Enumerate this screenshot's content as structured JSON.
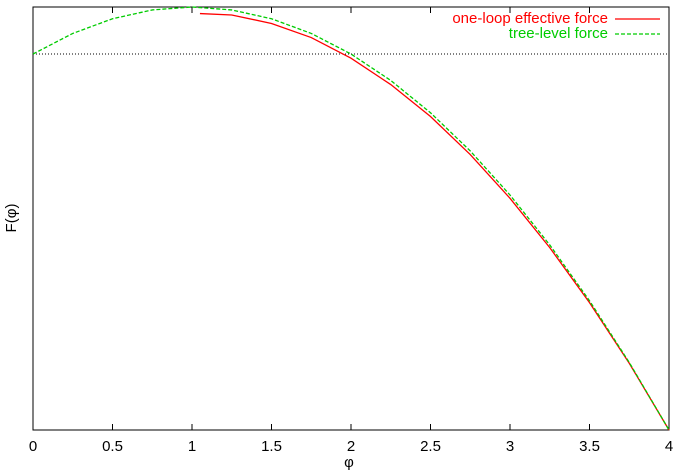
{
  "chart_data": {
    "type": "line",
    "xlabel": "φ",
    "ylabel": "F(φ)",
    "xlim": [
      0,
      4
    ],
    "ylim": [
      -8,
      1
    ],
    "xticks": [
      0,
      0.5,
      1,
      1.5,
      2,
      2.5,
      3,
      3.5,
      4
    ],
    "zeroaxis": true,
    "legend": "top-right",
    "series": [
      {
        "name": "one-loop effective force",
        "color": "#ff0000",
        "dash": false,
        "x": [
          1.05,
          1.25,
          1.5,
          1.75,
          2,
          2.25,
          2.5,
          2.75,
          3,
          3.25,
          3.5,
          3.75,
          4
        ],
        "values": [
          0.86,
          0.83,
          0.65,
          0.35,
          -0.09,
          -0.65,
          -1.33,
          -2.14,
          -3.07,
          -4.12,
          -5.29,
          -6.58,
          -8
        ]
      },
      {
        "name": "tree-level force",
        "color": "#00cc00",
        "dash": true,
        "x": [
          0,
          0.25,
          0.5,
          0.75,
          1,
          1.25,
          1.5,
          1.75,
          2,
          2.25,
          2.5,
          2.75,
          3,
          3.25,
          3.5,
          3.75,
          4
        ],
        "values": [
          0,
          0.4375,
          0.75,
          0.9375,
          1,
          0.9375,
          0.75,
          0.4375,
          0,
          -0.5625,
          -1.25,
          -2.0625,
          -3,
          -4.0625,
          -5.25,
          -6.5625,
          -8
        ]
      }
    ]
  }
}
